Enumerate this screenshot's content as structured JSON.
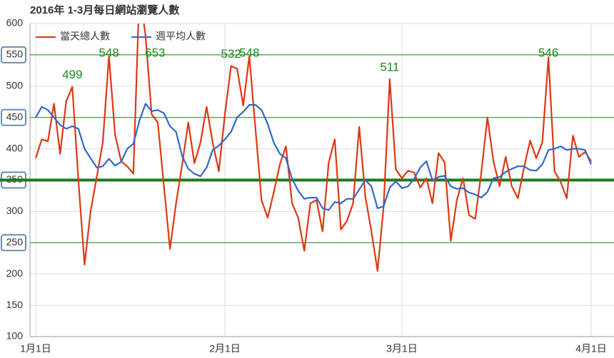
{
  "chart_data": {
    "type": "line",
    "title": "2016年 1-3月每日網站瀏覽人數",
    "categories": [
      "1月1日",
      null,
      null,
      null,
      null,
      null,
      null,
      null,
      null,
      null,
      null,
      null,
      null,
      null,
      null,
      null,
      null,
      null,
      null,
      null,
      null,
      null,
      null,
      null,
      null,
      null,
      null,
      null,
      null,
      null,
      null,
      "2月1日",
      null,
      null,
      null,
      null,
      null,
      null,
      null,
      null,
      null,
      null,
      null,
      null,
      null,
      null,
      null,
      null,
      null,
      null,
      null,
      null,
      null,
      null,
      null,
      null,
      null,
      null,
      null,
      null,
      "3月1日",
      null,
      null,
      null,
      null,
      null,
      null,
      null,
      null,
      null,
      null,
      null,
      null,
      null,
      null,
      null,
      null,
      null,
      null,
      null,
      null,
      null,
      null,
      null,
      null,
      null,
      null,
      null,
      null,
      null,
      null,
      "4月1日"
    ],
    "series": [
      {
        "name": "當天總人數",
        "color": "#dc3912",
        "values": [
          385,
          415,
          412,
          472,
          392,
          476,
          499,
          350,
          215,
          300,
          355,
          410,
          548,
          423,
          380,
          372,
          360,
          653,
          580,
          455,
          442,
          342,
          240,
          313,
          375,
          442,
          377,
          410,
          467,
          410,
          364,
          455,
          532,
          528,
          469,
          548,
          432,
          318,
          290,
          330,
          375,
          404,
          313,
          290,
          237,
          313,
          318,
          268,
          378,
          415,
          271,
          285,
          313,
          435,
          324,
          268,
          205,
          307,
          511,
          367,
          353,
          365,
          362,
          338,
          353,
          313,
          393,
          378,
          253,
          318,
          353,
          294,
          288,
          362,
          450,
          380,
          340,
          387,
          340,
          321,
          370,
          413,
          385,
          410,
          546,
          364,
          347,
          321,
          421,
          387,
          395,
          380
        ],
        "value_labels": [
          null,
          null,
          null,
          null,
          null,
          null,
          "499",
          null,
          null,
          null,
          null,
          null,
          "548",
          null,
          null,
          null,
          null,
          "653",
          null,
          null,
          null,
          null,
          null,
          null,
          null,
          null,
          null,
          null,
          null,
          null,
          null,
          null,
          "532",
          null,
          null,
          "548",
          null,
          null,
          null,
          null,
          null,
          null,
          null,
          null,
          null,
          null,
          null,
          null,
          null,
          null,
          null,
          null,
          null,
          null,
          null,
          null,
          null,
          null,
          "511",
          null,
          null,
          null,
          null,
          null,
          null,
          null,
          null,
          null,
          null,
          null,
          null,
          null,
          null,
          null,
          null,
          null,
          null,
          null,
          null,
          null,
          null,
          null,
          null,
          null,
          "546",
          null,
          null,
          null,
          null,
          null,
          null,
          null
        ]
      },
      {
        "name": "週平均人數",
        "color": "#3366cc",
        "values": [
          450,
          467,
          462,
          450,
          438,
          432,
          436,
          432,
          400,
          385,
          370,
          372,
          384,
          373,
          379,
          400,
          408,
          445,
          472,
          460,
          462,
          457,
          436,
          427,
          388,
          368,
          360,
          356,
          370,
          398,
          405,
          415,
          427,
          450,
          459,
          470,
          470,
          462,
          440,
          410,
          392,
          385,
          352,
          333,
          320,
          322,
          322,
          305,
          302,
          315,
          313,
          320,
          320,
          335,
          350,
          340,
          305,
          308,
          338,
          348,
          337,
          340,
          352,
          370,
          380,
          350,
          355,
          357,
          340,
          336,
          337,
          330,
          327,
          322,
          331,
          353,
          355,
          363,
          368,
          372,
          372,
          366,
          365,
          375,
          398,
          400,
          404,
          398,
          400,
          400,
          398,
          375
        ]
      }
    ],
    "ylim": [
      100,
      600
    ],
    "yticks": [
      100,
      150,
      200,
      250,
      300,
      350,
      400,
      450,
      500,
      550,
      600
    ],
    "grid": true,
    "legend": "top-left",
    "reference_lines": [
      550,
      450,
      250
    ],
    "reference_color": "#1a8a1a",
    "highlight_line": 350,
    "highlight_color": "#1a7a1a",
    "label_color": "#1a8a1a"
  }
}
